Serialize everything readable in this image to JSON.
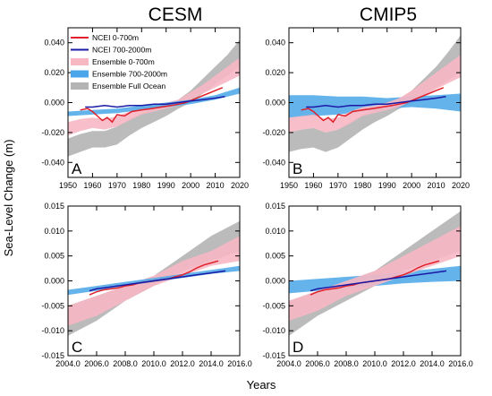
{
  "figure": {
    "column_titles": [
      "CESM",
      "CMIP5"
    ],
    "ylabel": "Sea-Level Change (m)",
    "xlabel": "Years",
    "legend": [
      {
        "label": "NCEI 0-700m",
        "kind": "line",
        "color": "#e0202a"
      },
      {
        "label": "NCEI 700-2000m",
        "kind": "line",
        "color": "#1a1aa6"
      },
      {
        "label": "Ensemble 0-700m",
        "kind": "band",
        "color": "#f7b8c4"
      },
      {
        "label": "Ensemble 700-2000m",
        "kind": "band",
        "color": "#4aa6e8"
      },
      {
        "label": "Ensemble Full Ocean",
        "kind": "band",
        "color": "#b4b4b4"
      }
    ],
    "colors": {
      "ncei_upper": "#e0202a",
      "ncei_deep": "#1a1aa6",
      "ens_upper": "#f7b8c4",
      "ens_deep": "#4aa6e8",
      "ens_full": "#b4b4b4"
    }
  },
  "chart_data": [
    {
      "type": "line",
      "panel": "A",
      "model": "CESM",
      "xlim": [
        1950,
        2020
      ],
      "ylim": [
        -0.05,
        0.05
      ],
      "xticks": [
        "1950",
        "1960",
        "1970",
        "1980",
        "1990",
        "2000",
        "2010",
        "2020"
      ],
      "yticks": [
        "-0.040",
        "-0.020",
        "0.000",
        "0.020",
        "0.040"
      ],
      "xtick_values": [
        1950,
        1960,
        1970,
        1980,
        1990,
        2000,
        2010,
        2020
      ],
      "ytick_values": [
        -0.04,
        -0.02,
        0,
        0.02,
        0.04
      ],
      "bands": [
        {
          "key": "ens_full",
          "x": [
            1950,
            1955,
            1960,
            1965,
            1970,
            1975,
            1980,
            1985,
            1990,
            1995,
            2000,
            2005,
            2010,
            2015,
            2020
          ],
          "low": [
            -0.036,
            -0.033,
            -0.03,
            -0.03,
            -0.028,
            -0.022,
            -0.017,
            -0.013,
            -0.009,
            -0.004,
            0.0,
            0.006,
            0.012,
            0.018,
            0.024
          ],
          "high": [
            -0.024,
            -0.021,
            -0.019,
            -0.019,
            -0.016,
            -0.011,
            -0.007,
            -0.004,
            -0.001,
            0.002,
            0.008,
            0.016,
            0.024,
            0.032,
            0.042
          ]
        },
        {
          "key": "ens_upper",
          "x": [
            1950,
            1955,
            1960,
            1965,
            1970,
            1975,
            1980,
            1985,
            1990,
            1995,
            2000,
            2005,
            2010,
            2015,
            2020
          ],
          "low": [
            -0.022,
            -0.019,
            -0.017,
            -0.018,
            -0.016,
            -0.012,
            -0.008,
            -0.006,
            -0.004,
            -0.002,
            0.002,
            0.006,
            0.01,
            0.014,
            0.018
          ],
          "high": [
            -0.013,
            -0.011,
            -0.01,
            -0.011,
            -0.009,
            -0.006,
            -0.003,
            -0.002,
            0.0,
            0.002,
            0.007,
            0.012,
            0.018,
            0.024,
            0.03
          ]
        },
        {
          "key": "ens_deep",
          "x": [
            1950,
            1960,
            1970,
            1980,
            1990,
            2000,
            2010,
            2020
          ],
          "low": [
            -0.009,
            -0.008,
            -0.007,
            -0.005,
            -0.003,
            -0.001,
            0.002,
            0.006
          ],
          "high": [
            -0.006,
            -0.005,
            -0.004,
            -0.002,
            0.0,
            0.002,
            0.005,
            0.01
          ]
        }
      ],
      "lines": [
        {
          "key": "ncei_upper",
          "x": [
            1955,
            1958,
            1960,
            1962,
            1964,
            1966,
            1968,
            1970,
            1973,
            1976,
            1980,
            1984,
            1988,
            1992,
            1995,
            1998,
            2001,
            2004,
            2007,
            2010,
            2013
          ],
          "y": [
            -0.005,
            -0.004,
            -0.006,
            -0.009,
            -0.012,
            -0.01,
            -0.013,
            -0.008,
            -0.009,
            -0.006,
            -0.005,
            -0.004,
            -0.003,
            -0.002,
            -0.001,
            0.0,
            0.002,
            0.004,
            0.006,
            0.008,
            0.01
          ]
        },
        {
          "key": "ncei_deep",
          "x": [
            1957,
            1960,
            1965,
            1970,
            1975,
            1980,
            1985,
            1990,
            1995,
            2000,
            2005,
            2010,
            2014
          ],
          "y": [
            -0.003,
            -0.003,
            -0.002,
            -0.003,
            -0.002,
            -0.002,
            -0.001,
            -0.001,
            0.0,
            0.001,
            0.002,
            0.003,
            0.004
          ]
        }
      ]
    },
    {
      "type": "line",
      "panel": "B",
      "model": "CMIP5",
      "xlim": [
        1950,
        2020
      ],
      "ylim": [
        -0.05,
        0.05
      ],
      "xticks": [
        "1950",
        "1960",
        "1970",
        "1980",
        "1990",
        "2000",
        "2010",
        "2020"
      ],
      "yticks": [
        "-0.040",
        "-0.020",
        "0.000",
        "0.020",
        "0.040"
      ],
      "xtick_values": [
        1950,
        1960,
        1970,
        1980,
        1990,
        2000,
        2010,
        2020
      ],
      "ytick_values": [
        -0.04,
        -0.02,
        0,
        0.02,
        0.04
      ],
      "bands": [
        {
          "key": "ens_full",
          "x": [
            1950,
            1955,
            1960,
            1965,
            1970,
            1975,
            1980,
            1985,
            1990,
            1995,
            2000,
            2005,
            2010,
            2015,
            2020
          ],
          "low": [
            -0.033,
            -0.031,
            -0.03,
            -0.033,
            -0.03,
            -0.024,
            -0.018,
            -0.013,
            -0.009,
            -0.004,
            0.0,
            0.005,
            0.01,
            0.015,
            0.02
          ],
          "high": [
            -0.02,
            -0.018,
            -0.017,
            -0.02,
            -0.018,
            -0.013,
            -0.008,
            -0.005,
            -0.002,
            0.002,
            0.008,
            0.016,
            0.024,
            0.034,
            0.045
          ]
        },
        {
          "key": "ens_deep",
          "x": [
            1950,
            1960,
            1970,
            1980,
            1990,
            2000,
            2010,
            2020
          ],
          "low": [
            -0.01,
            -0.009,
            -0.008,
            -0.006,
            -0.004,
            -0.003,
            -0.004,
            -0.006
          ],
          "high": [
            0.005,
            0.005,
            0.004,
            0.004,
            0.003,
            0.004,
            0.005,
            0.006
          ]
        },
        {
          "key": "ens_upper",
          "x": [
            1950,
            1955,
            1960,
            1965,
            1970,
            1975,
            1980,
            1985,
            1990,
            1995,
            2000,
            2005,
            2010,
            2015,
            2020
          ],
          "low": [
            -0.02,
            -0.018,
            -0.017,
            -0.02,
            -0.018,
            -0.014,
            -0.009,
            -0.007,
            -0.005,
            -0.003,
            0.001,
            0.005,
            0.009,
            0.013,
            0.017
          ],
          "high": [
            -0.01,
            -0.009,
            -0.008,
            -0.011,
            -0.01,
            -0.006,
            -0.003,
            -0.002,
            0.0,
            0.003,
            0.008,
            0.014,
            0.02,
            0.026,
            0.032
          ]
        }
      ],
      "lines": [
        {
          "key": "ncei_upper",
          "x": [
            1955,
            1958,
            1960,
            1962,
            1964,
            1966,
            1968,
            1970,
            1973,
            1976,
            1980,
            1984,
            1988,
            1992,
            1995,
            1998,
            2001,
            2004,
            2007,
            2010,
            2013
          ],
          "y": [
            -0.005,
            -0.004,
            -0.006,
            -0.009,
            -0.012,
            -0.01,
            -0.013,
            -0.008,
            -0.009,
            -0.006,
            -0.005,
            -0.004,
            -0.003,
            -0.002,
            -0.001,
            0.0,
            0.002,
            0.004,
            0.006,
            0.008,
            0.01
          ]
        },
        {
          "key": "ncei_deep",
          "x": [
            1957,
            1960,
            1965,
            1970,
            1975,
            1980,
            1985,
            1990,
            1995,
            2000,
            2005,
            2010,
            2014
          ],
          "y": [
            -0.003,
            -0.003,
            -0.002,
            -0.003,
            -0.002,
            -0.002,
            -0.001,
            -0.001,
            0.0,
            0.001,
            0.002,
            0.003,
            0.004
          ]
        }
      ]
    },
    {
      "type": "line",
      "panel": "C",
      "model": "CESM",
      "xlim": [
        2004,
        2016
      ],
      "ylim": [
        -0.015,
        0.015
      ],
      "xticks": [
        "2004.0",
        "2006.0",
        "2008.0",
        "2010.0",
        "2012.0",
        "2014.0",
        "2016.0"
      ],
      "yticks": [
        "-0.015",
        "-0.010",
        "-0.005",
        "0.000",
        "0.005",
        "0.010",
        "0.015"
      ],
      "xtick_values": [
        2004,
        2006,
        2008,
        2010,
        2012,
        2014,
        2016
      ],
      "ytick_values": [
        -0.015,
        -0.01,
        -0.005,
        0,
        0.005,
        0.01,
        0.015
      ],
      "bands": [
        {
          "key": "ens_full",
          "x": [
            2004,
            2006,
            2008,
            2010,
            2012,
            2014,
            2016
          ],
          "low": [
            -0.011,
            -0.008,
            -0.004,
            -0.001,
            0.002,
            0.004,
            0.006
          ],
          "high": [
            -0.005,
            -0.003,
            -0.001,
            0.001,
            0.005,
            0.009,
            0.012
          ]
        },
        {
          "key": "ens_upper",
          "x": [
            2004,
            2006,
            2008,
            2010,
            2012,
            2014,
            2016
          ],
          "low": [
            -0.009,
            -0.007,
            -0.004,
            -0.001,
            0.001,
            0.003,
            0.004
          ],
          "high": [
            -0.005,
            -0.003,
            -0.001,
            0.001,
            0.004,
            0.006,
            0.009
          ]
        },
        {
          "key": "ens_deep",
          "x": [
            2004,
            2006,
            2008,
            2010,
            2012,
            2014,
            2016
          ],
          "low": [
            -0.0028,
            -0.002,
            -0.001,
            -0.0002,
            0.0006,
            0.0014,
            0.002
          ],
          "high": [
            -0.0018,
            -0.001,
            -0.0002,
            0.0006,
            0.0014,
            0.0022,
            0.003
          ]
        }
      ],
      "lines": [
        {
          "key": "ncei_upper",
          "x": [
            2005.5,
            2006,
            2006.5,
            2007,
            2007.5,
            2008,
            2008.5,
            2009,
            2009.5,
            2010,
            2010.5,
            2011,
            2011.5,
            2012,
            2012.5,
            2013,
            2013.5,
            2014,
            2014.5
          ],
          "y": [
            -0.0028,
            -0.0022,
            -0.0018,
            -0.0016,
            -0.0014,
            -0.001,
            -0.0008,
            -0.0004,
            -0.0002,
            0.0,
            0.0002,
            0.0004,
            0.0008,
            0.0012,
            0.0018,
            0.0026,
            0.0032,
            0.0036,
            0.004
          ]
        },
        {
          "key": "ncei_deep",
          "x": [
            2005.5,
            2006,
            2007,
            2008,
            2009,
            2010,
            2011,
            2012,
            2013,
            2014,
            2015
          ],
          "y": [
            -0.002,
            -0.0016,
            -0.0012,
            -0.0008,
            -0.0004,
            0.0,
            0.0004,
            0.0008,
            0.0012,
            0.0016,
            0.002
          ]
        }
      ]
    },
    {
      "type": "line",
      "panel": "D",
      "model": "CMIP5",
      "xlim": [
        2004,
        2016
      ],
      "ylim": [
        -0.015,
        0.015
      ],
      "xticks": [
        "2004.0",
        "2006.0",
        "2008.0",
        "2010.0",
        "2012.0",
        "2014.0",
        "2016.0"
      ],
      "yticks": [
        "-0.015",
        "-0.010",
        "-0.005",
        "0.000",
        "0.005",
        "0.010",
        "0.015"
      ],
      "xtick_values": [
        2004,
        2006,
        2008,
        2010,
        2012,
        2014,
        2016
      ],
      "ytick_values": [
        -0.015,
        -0.01,
        -0.005,
        0,
        0.005,
        0.01,
        0.015
      ],
      "bands": [
        {
          "key": "ens_full",
          "x": [
            2004,
            2006,
            2008,
            2010,
            2012,
            2014,
            2016
          ],
          "low": [
            -0.011,
            -0.007,
            -0.004,
            -0.001,
            0.002,
            0.004,
            0.006
          ],
          "high": [
            -0.004,
            -0.002,
            0.0,
            0.002,
            0.006,
            0.01,
            0.014
          ]
        },
        {
          "key": "ens_deep",
          "x": [
            2004,
            2006,
            2008,
            2010,
            2012,
            2014,
            2016
          ],
          "low": [
            -0.0025,
            -0.002,
            -0.0015,
            -0.001,
            -0.0005,
            -0.0002,
            0.0
          ],
          "high": [
            0.0,
            0.0004,
            0.0008,
            0.0012,
            0.0018,
            0.0024,
            0.003
          ]
        },
        {
          "key": "ens_upper",
          "x": [
            2004,
            2006,
            2008,
            2010,
            2012,
            2014,
            2016
          ],
          "low": [
            -0.008,
            -0.006,
            -0.003,
            -0.001,
            0.001,
            0.003,
            0.005
          ],
          "high": [
            -0.004,
            -0.002,
            0.0,
            0.002,
            0.005,
            0.008,
            0.011
          ]
        }
      ],
      "lines": [
        {
          "key": "ncei_upper",
          "x": [
            2005.5,
            2006,
            2006.5,
            2007,
            2007.5,
            2008,
            2008.5,
            2009,
            2009.5,
            2010,
            2010.5,
            2011,
            2011.5,
            2012,
            2012.5,
            2013,
            2013.5,
            2014,
            2014.5
          ],
          "y": [
            -0.0028,
            -0.0022,
            -0.0018,
            -0.0016,
            -0.0014,
            -0.001,
            -0.0008,
            -0.0004,
            -0.0002,
            0.0,
            0.0002,
            0.0004,
            0.0008,
            0.0012,
            0.0018,
            0.0026,
            0.0032,
            0.0036,
            0.004
          ]
        },
        {
          "key": "ncei_deep",
          "x": [
            2005.5,
            2006,
            2007,
            2008,
            2009,
            2010,
            2011,
            2012,
            2013,
            2014,
            2015
          ],
          "y": [
            -0.002,
            -0.0016,
            -0.0012,
            -0.0008,
            -0.0004,
            0.0,
            0.0004,
            0.0008,
            0.0012,
            0.0016,
            0.002
          ]
        }
      ]
    }
  ]
}
